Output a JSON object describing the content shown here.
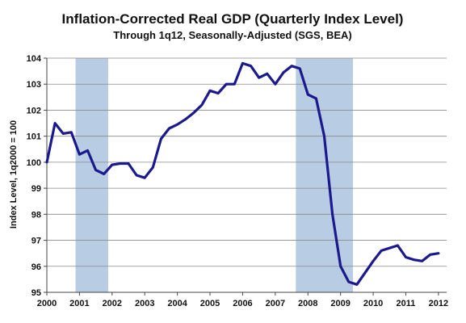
{
  "chart_data": {
    "type": "line",
    "title": "Inflation-Corrected Real GDP (Quarterly Index Level)",
    "subtitle": "Through 1q12, Seasonally-Adjusted (SGS, BEA)",
    "ylabel": "Index Level, 1q2000 = 100",
    "xlabel": "",
    "ylim": [
      95,
      104
    ],
    "y_ticks": [
      95,
      96,
      97,
      98,
      99,
      100,
      101,
      102,
      103,
      104
    ],
    "xlim": [
      2000,
      2012.25
    ],
    "x_ticks": [
      2000,
      2001,
      2002,
      2003,
      2004,
      2005,
      2006,
      2007,
      2008,
      2009,
      2010,
      2011,
      2012
    ],
    "x_tick_labels": [
      "2000",
      "2001",
      "2002",
      "2003",
      "2004",
      "2005",
      "2006",
      "2007",
      "2008",
      "2009",
      "2010",
      "2011",
      "2012"
    ],
    "grid": "horizontal",
    "legend": "none",
    "recession_periods": [
      {
        "start": 2000.88,
        "end": 2001.88
      },
      {
        "start": 2007.63,
        "end": 2009.38
      }
    ],
    "series": [
      {
        "color": "#1a1a8c",
        "x": [
          2000.0,
          2000.25,
          2000.5,
          2000.75,
          2001.0,
          2001.25,
          2001.5,
          2001.75,
          2002.0,
          2002.25,
          2002.5,
          2002.75,
          2003.0,
          2003.25,
          2003.5,
          2003.75,
          2004.0,
          2004.25,
          2004.5,
          2004.75,
          2005.0,
          2005.25,
          2005.5,
          2005.75,
          2006.0,
          2006.25,
          2006.5,
          2006.75,
          2007.0,
          2007.25,
          2007.5,
          2007.75,
          2008.0,
          2008.25,
          2008.5,
          2008.75,
          2009.0,
          2009.25,
          2009.5,
          2009.75,
          2010.0,
          2010.25,
          2010.5,
          2010.75,
          2011.0,
          2011.25,
          2011.5,
          2011.75,
          2012.0
        ],
        "y": [
          100.0,
          101.5,
          101.1,
          101.15,
          100.3,
          100.45,
          99.7,
          99.55,
          99.9,
          99.95,
          99.95,
          99.5,
          99.4,
          99.8,
          100.9,
          101.3,
          101.45,
          101.65,
          101.9,
          102.2,
          102.75,
          102.65,
          103.0,
          103.0,
          103.8,
          103.7,
          103.25,
          103.4,
          103.0,
          103.45,
          103.7,
          103.6,
          102.6,
          102.45,
          101.0,
          98.0,
          96.0,
          95.4,
          95.3,
          95.75,
          96.2,
          96.6,
          96.7,
          96.8,
          96.35,
          96.25,
          96.2,
          96.45,
          96.5
        ]
      }
    ],
    "colors": {
      "line": "#1a1a8c",
      "recession": "#b8cce4",
      "grid": "#8a8a8a",
      "axis": "#444444"
    }
  }
}
